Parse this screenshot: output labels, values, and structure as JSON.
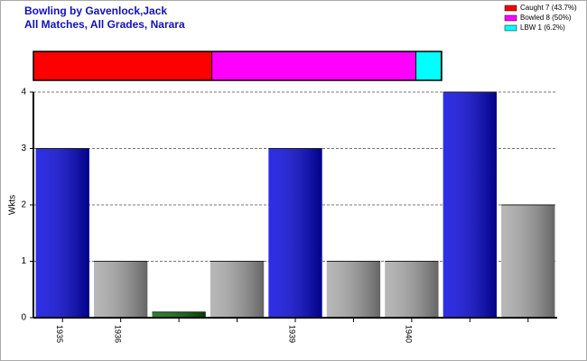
{
  "chart_data": {
    "type": "bar",
    "title": "Bowling by Gavenlock,Jack",
    "subtitle": "All Matches, All Grades, Narara",
    "y_label": "Wkts",
    "categories": [
      "1935",
      "1936",
      null,
      null,
      "1939",
      null,
      "1940",
      null,
      null
    ],
    "values": [
      3,
      1,
      0.1,
      1,
      3,
      1,
      1,
      4,
      2
    ],
    "colors": [
      "#0000e0",
      "#a8a8a8",
      "#006400",
      "#a8a8a8",
      "#0000e0",
      "#a8a8a8",
      "#a8a8a8",
      "#0000e0",
      "#a8a8a8"
    ],
    "ylim": [
      0,
      4
    ],
    "yticks": [
      0,
      1,
      2,
      3,
      4
    ],
    "grid": true,
    "legend": "top-right",
    "summary": {
      "type": "stacked-bar",
      "xlim": [
        0,
        100
      ],
      "series": [
        {
          "name": "Caught 7 (43.7%)",
          "color": "#ff0000",
          "values": [
            43.7
          ]
        },
        {
          "name": "Bowled 8 (50%)",
          "color": "#ff00ff",
          "values": [
            50
          ]
        },
        {
          "name": "LBW 1 (6.2%)",
          "color": "#00ffff",
          "values": [
            6.2
          ]
        }
      ]
    }
  }
}
